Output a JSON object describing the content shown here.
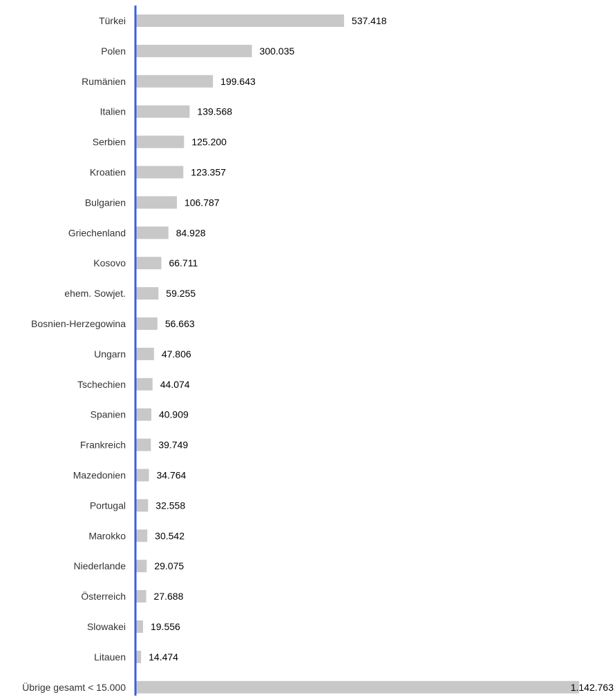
{
  "colors": {
    "bar": "#c8c8c8",
    "axis": "#3a5fe0",
    "category_text": "#333333",
    "value_text": "#000000",
    "background": "#ffffff"
  },
  "chart_data": {
    "type": "bar",
    "orientation": "horizontal",
    "grid": false,
    "legend": "none",
    "title": "",
    "xlabel": "",
    "ylabel": "",
    "categories": [
      "Türkei",
      "Polen",
      "Rumänien",
      "Italien",
      "Serbien",
      "Kroatien",
      "Bulgarien",
      "Griechenland",
      "Kosovo",
      "ehem. Sowjet.",
      "Bosnien-Herzegowina",
      "Ungarn",
      "Tschechien",
      "Spanien",
      "Frankreich",
      "Mazedonien",
      "Portugal",
      "Marokko",
      "Niederlande",
      "Österreich",
      "Slowakei",
      "Litauen",
      "Übrige gesamt < 15.000"
    ],
    "values": [
      537418,
      300035,
      199643,
      139568,
      125200,
      123357,
      106787,
      84928,
      66711,
      59255,
      56663,
      47806,
      44074,
      40909,
      39749,
      34764,
      32558,
      30542,
      29075,
      27688,
      19556,
      14474,
      1142763
    ],
    "value_labels": [
      "537.418",
      "300.035",
      "199.643",
      "139.568",
      "125.200",
      "123.357",
      "106.787",
      "84.928",
      "66.711",
      "59.255",
      "56.663",
      "47.806",
      "44.074",
      "40.909",
      "39.749",
      "34.764",
      "32.558",
      "30.542",
      "29.075",
      "27.688",
      "19.556",
      "14.474",
      "1.142.763"
    ],
    "xlim": [
      0,
      1142763
    ]
  }
}
